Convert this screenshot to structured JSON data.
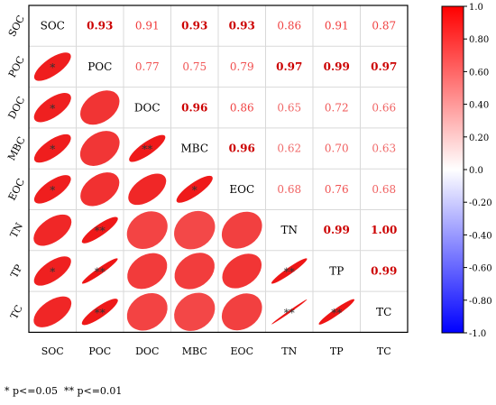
{
  "chart_data": {
    "type": "heatmap",
    "variables": [
      "SOC",
      "POC",
      "DOC",
      "MBC",
      "EOC",
      "TN",
      "TP",
      "TC"
    ],
    "matrix": [
      [
        1.0,
        0.93,
        0.91,
        0.93,
        0.93,
        0.86,
        0.91,
        0.87
      ],
      [
        0.93,
        1.0,
        0.77,
        0.75,
        0.79,
        0.97,
        0.99,
        0.97
      ],
      [
        0.91,
        0.77,
        1.0,
        0.96,
        0.86,
        0.65,
        0.72,
        0.66
      ],
      [
        0.93,
        0.75,
        0.96,
        1.0,
        0.96,
        0.62,
        0.7,
        0.63
      ],
      [
        0.93,
        0.79,
        0.86,
        0.96,
        1.0,
        0.68,
        0.76,
        0.68
      ],
      [
        0.86,
        0.97,
        0.65,
        0.62,
        0.68,
        1.0,
        0.99,
        1.0
      ],
      [
        0.91,
        0.99,
        0.72,
        0.7,
        0.76,
        0.99,
        1.0,
        0.99
      ],
      [
        0.87,
        0.97,
        0.66,
        0.63,
        0.68,
        1.0,
        0.99,
        1.0
      ]
    ],
    "upper_labels": [
      [
        null,
        "0.93",
        "0.91",
        "0.93",
        "0.93",
        "0.86",
        "0.91",
        "0.87"
      ],
      [
        null,
        null,
        "0.77",
        "0.75",
        "0.79",
        "0.97",
        "0.99",
        "0.97"
      ],
      [
        null,
        null,
        null,
        "0.96",
        "0.86",
        "0.65",
        "0.72",
        "0.66"
      ],
      [
        null,
        null,
        null,
        null,
        "0.96",
        "0.62",
        "0.70",
        "0.63"
      ],
      [
        null,
        null,
        null,
        null,
        null,
        "0.68",
        "0.76",
        "0.68"
      ],
      [
        null,
        null,
        null,
        null,
        null,
        null,
        "0.99",
        "1.00"
      ],
      [
        null,
        null,
        null,
        null,
        null,
        null,
        null,
        "0.99"
      ]
    ],
    "bold_cells": [
      [
        0,
        1
      ],
      [
        0,
        3
      ],
      [
        0,
        4
      ],
      [
        1,
        5
      ],
      [
        1,
        6
      ],
      [
        1,
        7
      ],
      [
        2,
        3
      ],
      [
        3,
        4
      ],
      [
        5,
        6
      ],
      [
        5,
        7
      ],
      [
        6,
        7
      ]
    ],
    "significance": [
      [
        null,
        null,
        null,
        null,
        null,
        null,
        null,
        null
      ],
      [
        "*",
        null,
        null,
        null,
        null,
        null,
        null,
        null
      ],
      [
        "*",
        null,
        null,
        null,
        null,
        null,
        null,
        null
      ],
      [
        "*",
        null,
        "**",
        null,
        null,
        null,
        null,
        null
      ],
      [
        "*",
        null,
        null,
        "*",
        null,
        null,
        null,
        null
      ],
      [
        null,
        "**",
        null,
        null,
        null,
        null,
        null,
        null
      ],
      [
        "*",
        "**",
        null,
        null,
        null,
        "**",
        null,
        null
      ],
      [
        null,
        "**",
        null,
        null,
        null,
        "**",
        "**",
        null
      ]
    ],
    "colorbar": {
      "range": [
        -1.0,
        1.0
      ],
      "ticks": [
        "1.0",
        "0.80",
        "0.60",
        "0.40",
        "0.20",
        "0.0",
        "-0.20",
        "-0.40",
        "-0.60",
        "-0.80",
        "-1.0"
      ],
      "colors": [
        "#0000ff",
        "#ffffff",
        "#ff0000"
      ]
    },
    "legend_note": "* p<=0.05  ** p<=0.01",
    "colors": {
      "strong_text": "#cc0000",
      "grid": "#d9d9d9",
      "border": "#000000"
    }
  }
}
